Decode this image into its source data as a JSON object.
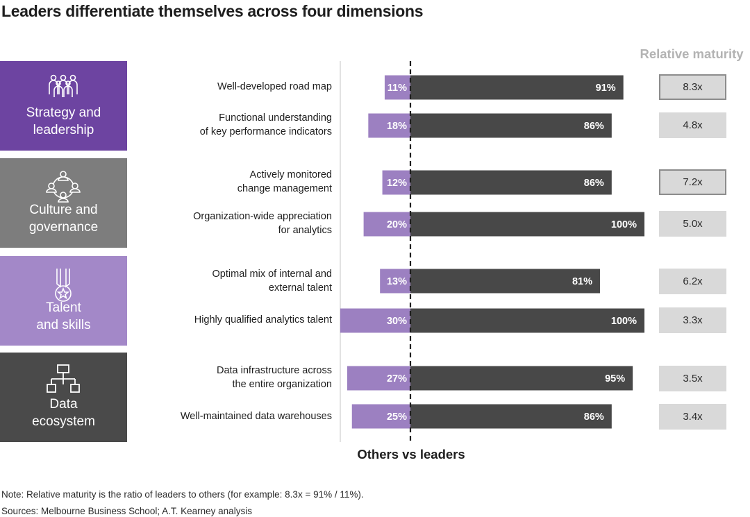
{
  "title": "Leaders differentiate themselves across four dimensions",
  "relative_maturity_header": "Relative maturity",
  "axis_label": "Others vs leaders",
  "note": "Note: Relative maturity is the ratio of leaders to others (for example: 8.3x = 91% / 11%).",
  "sources": "Sources: Melbourne Business School; A.T. Kearney analysis",
  "colors": {
    "others_bar": "#9c80c1",
    "leaders_bar": "#484848",
    "strategy": "#6d44a1",
    "culture": "#7d7d7d",
    "talent": "#a388c8",
    "data": "#4a4a4a",
    "relative_box": "#d9d9d9"
  },
  "dimensions": [
    {
      "label": "Strategy and\nleadership",
      "icon": "people-group-icon",
      "color": "#6d44a1"
    },
    {
      "label": "Culture and\ngovernance",
      "icon": "network-people-icon",
      "color": "#7d7d7d"
    },
    {
      "label": "Talent\nand skills",
      "icon": "medal-icon",
      "color": "#a388c8"
    },
    {
      "label": "Data\necosystem",
      "icon": "org-chart-icon",
      "color": "#4a4a4a"
    }
  ],
  "chart_data": {
    "type": "bar",
    "categories": [
      "Well-developed road map",
      "Functional understanding\nof key performance indicators",
      "Actively monitored\nchange management",
      "Organization-wide appreciation\nfor analytics",
      "Optimal mix of internal and\nexternal talent",
      "Highly qualified analytics talent",
      "Data infrastructure across\nthe entire organization",
      "Well-maintained data warehouses"
    ],
    "series": [
      {
        "name": "Others",
        "values": [
          11,
          18,
          12,
          20,
          13,
          30,
          27,
          25
        ],
        "labels": [
          "11%",
          "18%",
          "12%",
          "20%",
          "13%",
          "30%",
          "27%",
          "25%"
        ]
      },
      {
        "name": "Leaders",
        "values": [
          91,
          86,
          86,
          100,
          81,
          100,
          95,
          86
        ],
        "labels": [
          "91%",
          "86%",
          "86%",
          "100%",
          "81%",
          "100%",
          "95%",
          "86%"
        ]
      }
    ],
    "relative_maturity": [
      "8.3x",
      "4.8x",
      "7.2x",
      "5.0x",
      "6.2x",
      "3.3x",
      "3.5x",
      "3.4x"
    ],
    "highlighted": [
      true,
      false,
      true,
      false,
      false,
      false,
      false,
      false
    ],
    "xlabel": "Others vs leaders",
    "ylabel": ""
  }
}
